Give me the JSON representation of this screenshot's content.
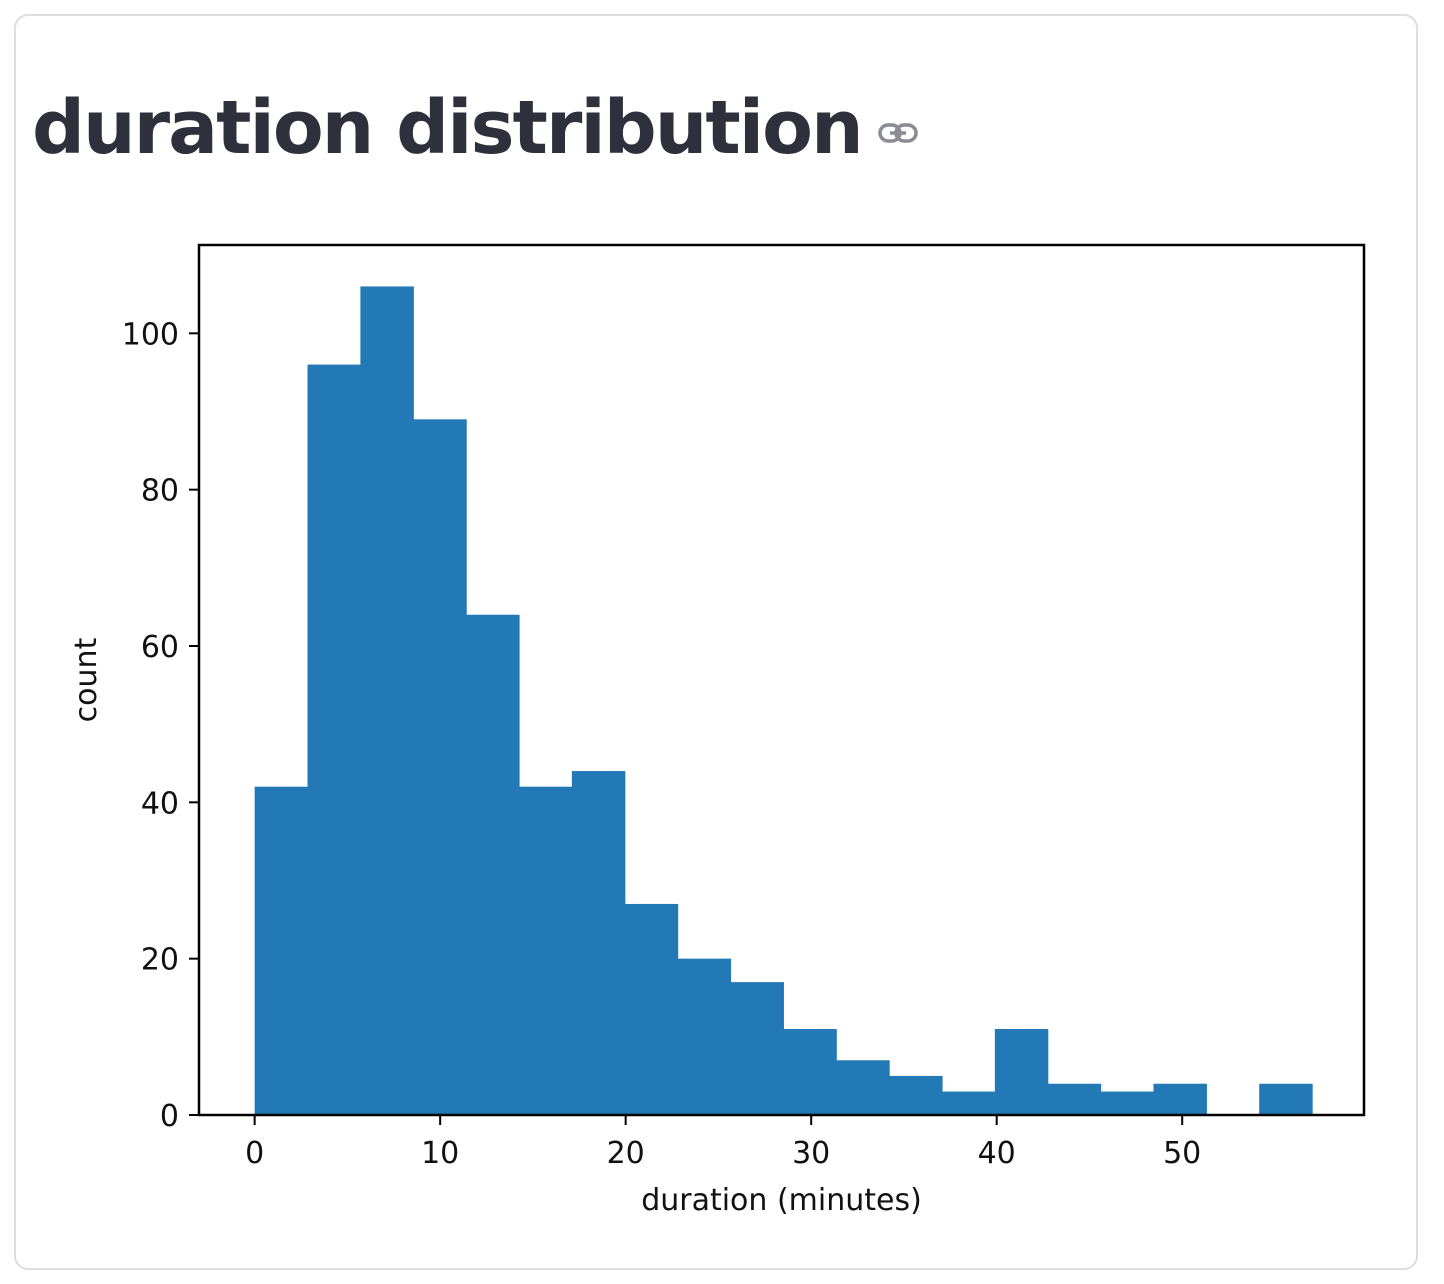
{
  "header": {
    "title": "duration distribution"
  },
  "icons": {
    "link": "link-icon"
  },
  "colors": {
    "bar": "#2279b5",
    "title": "#2e303b",
    "border": "#dcdde1"
  },
  "chart_data": {
    "type": "bar",
    "title": "",
    "xlabel": "duration (minutes)",
    "ylabel": "count",
    "xlim": [
      -3,
      59.8
    ],
    "ylim": [
      0,
      111.3
    ],
    "grid": false,
    "bin_edges": [
      0,
      2.85,
      5.7,
      8.55,
      11.4,
      14.25,
      17.1,
      19.95,
      22.8,
      25.65,
      28.5,
      31.35,
      34.2,
      37.05,
      39.9,
      42.75,
      45.6,
      48.45,
      51.3,
      54.15,
      57.0
    ],
    "values": [
      42,
      96,
      106,
      89,
      64,
      42,
      44,
      27,
      20,
      17,
      11,
      7,
      5,
      3,
      11,
      4,
      3,
      4,
      0,
      4
    ],
    "xticks": [
      0,
      10,
      20,
      30,
      40,
      50
    ],
    "yticks": [
      0,
      20,
      40,
      60,
      80,
      100
    ]
  }
}
